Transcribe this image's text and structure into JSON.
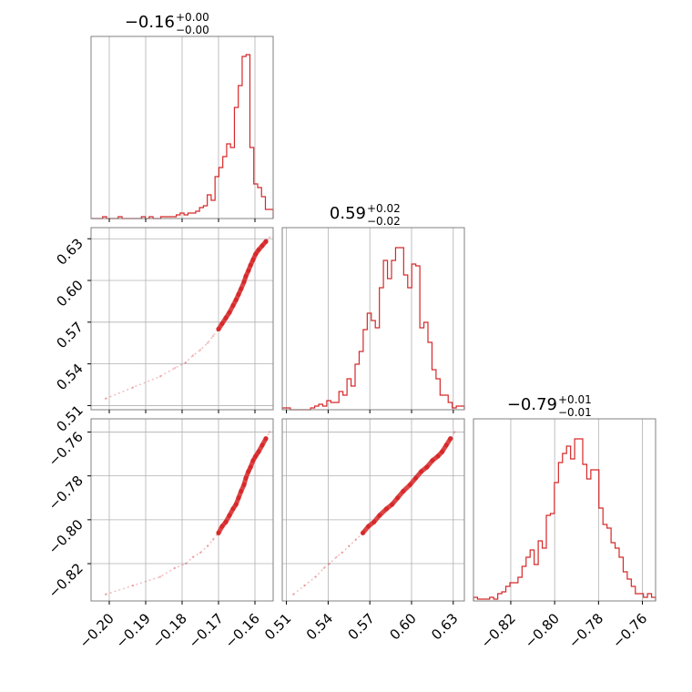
{
  "chart_data": {
    "type": "corner",
    "color": "#d62728",
    "grid": true,
    "parameters": [
      {
        "title": {
          "median": "−0.16",
          "plus": "+0.00",
          "minus": "−0.00"
        },
        "range": [
          -0.205,
          -0.155
        ],
        "ticks": [
          -0.2,
          -0.19,
          -0.18,
          -0.17,
          -0.16
        ],
        "tick_labels": [
          "−0.20",
          "−0.19",
          "−0.18",
          "−0.17",
          "−0.16"
        ],
        "hist": [
          0,
          0,
          0,
          0.01,
          0,
          0,
          0,
          0.01,
          0,
          0,
          0,
          0,
          0,
          0.01,
          0,
          0.01,
          0,
          0,
          0.01,
          0.01,
          0.01,
          0.01,
          0.02,
          0.03,
          0.02,
          0.03,
          0.03,
          0.04,
          0.06,
          0.07,
          0.13,
          0.1,
          0.23,
          0.28,
          0.34,
          0.41,
          0.39,
          0.61,
          0.73,
          0.89,
          0.9,
          0.39,
          0.19,
          0.17,
          0.12,
          0.05,
          0.05
        ]
      },
      {
        "title": {
          "median": "0.59",
          "plus": "+0.02",
          "minus": "−0.02"
        },
        "range": [
          0.507,
          0.638
        ],
        "ticks": [
          0.51,
          0.54,
          0.57,
          0.6,
          0.63
        ],
        "tick_labels": [
          "0.51",
          "0.54",
          "0.57",
          "0.60",
          "0.63"
        ],
        "hist": [
          0.01,
          0.01,
          0,
          0,
          0,
          0,
          0,
          0.01,
          0.02,
          0.03,
          0.02,
          0.05,
          0.04,
          0.04,
          0.1,
          0.08,
          0.17,
          0.13,
          0.25,
          0.32,
          0.44,
          0.53,
          0.49,
          0.45,
          0.67,
          0.82,
          0.72,
          0.82,
          0.89,
          0.89,
          0.74,
          0.67,
          0.8,
          0.79,
          0.45,
          0.48,
          0.37,
          0.22,
          0.17,
          0.08,
          0.08,
          0.04,
          0.01,
          0.02,
          0.02
        ]
      },
      {
        "title": {
          "median": "−0.79",
          "plus": "+0.01",
          "minus": "−0.01"
        },
        "range": [
          -0.837,
          -0.754
        ],
        "ticks": [
          -0.82,
          -0.8,
          -0.78,
          -0.76
        ],
        "tick_labels": [
          "−0.82",
          "−0.80",
          "−0.78",
          "−0.76"
        ],
        "hist": [
          0.02,
          0.01,
          0.01,
          0.01,
          0.02,
          0.01,
          0.04,
          0.05,
          0.08,
          0.1,
          0.1,
          0.13,
          0.19,
          0.24,
          0.28,
          0.2,
          0.33,
          0.29,
          0.47,
          0.48,
          0.65,
          0.76,
          0.81,
          0.85,
          0.78,
          0.89,
          0.89,
          0.75,
          0.67,
          0.72,
          0.72,
          0.51,
          0.42,
          0.4,
          0.32,
          0.29,
          0.24,
          0.16,
          0.12,
          0.08,
          0.04,
          0.04,
          0.02,
          0.04,
          0.02
        ]
      }
    ],
    "pair_samples": {
      "p1": [
        -0.201,
        -0.1935,
        -0.186,
        -0.182,
        -0.179,
        -0.177,
        -0.175,
        -0.173,
        -0.1715,
        -0.17,
        -0.169,
        -0.168,
        -0.167,
        -0.166,
        -0.1652,
        -0.1645,
        -0.1638,
        -0.163,
        -0.1625,
        -0.1618,
        -0.1612,
        -0.1605,
        -0.1598,
        -0.159,
        -0.158,
        -0.157,
        -0.156
      ],
      "p2": [
        0.515,
        0.523,
        0.531,
        0.537,
        0.541,
        0.546,
        0.55,
        0.555,
        0.56,
        0.565,
        0.569,
        0.573,
        0.577,
        0.582,
        0.586,
        0.59,
        0.594,
        0.599,
        0.603,
        0.607,
        0.611,
        0.615,
        0.619,
        0.622,
        0.625,
        0.628,
        0.631
      ],
      "p3": [
        -0.834,
        -0.83,
        -0.826,
        -0.822,
        -0.82,
        -0.817,
        -0.815,
        -0.812,
        -0.809,
        -0.806,
        -0.803,
        -0.801,
        -0.798,
        -0.795,
        -0.793,
        -0.79,
        -0.787,
        -0.784,
        -0.781,
        -0.778,
        -0.776,
        -0.773,
        -0.771,
        -0.769,
        -0.766,
        -0.763,
        -0.76
      ]
    }
  }
}
